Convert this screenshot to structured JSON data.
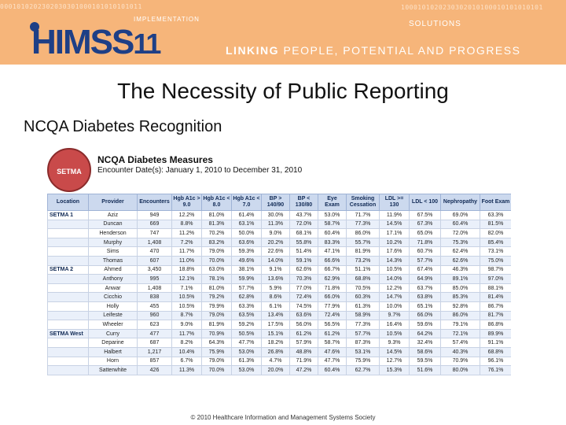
{
  "banner": {
    "binary_left": "0001010202302030301000101010101011",
    "binary_right": "1000101020230302010100010101010101",
    "implementation": "IMPLEMENTATION",
    "solutions": "SOLUTIONS",
    "logo_text": "HIMSS",
    "logo_number": "11",
    "tagline_strong": "LINKING",
    "tagline_rest": "PEOPLE, POTENTIAL AND PROGRESS"
  },
  "slide": {
    "title": "The Necessity of Public Reporting",
    "subtitle": "NCQA Diabetes Recognition"
  },
  "report": {
    "seal_text": "SETMA",
    "title": "NCQA Diabetes Measures",
    "date_range": "Encounter Date(s): January 1, 2010 to December 31, 2010"
  },
  "table": {
    "headers": [
      "Location",
      "Provider",
      "Encounters",
      "Hgb A1c > 9.0",
      "Hgb A1c < 8.0",
      "Hgb A1c < 7.0",
      "BP > 140/90",
      "BP < 130/80",
      "Eye Exam",
      "Smoking Cessation",
      "LDL >= 130",
      "LDL < 100",
      "Nephropathy",
      "Foot Exam"
    ],
    "rows": [
      [
        "SETMA 1",
        "Aziz",
        "949",
        "12.2%",
        "81.0%",
        "61.4%",
        "30.0%",
        "43.7%",
        "53.0%",
        "71.7%",
        "11.9%",
        "67.5%",
        "69.0%",
        "63.3%"
      ],
      [
        "",
        "Duncan",
        "669",
        "8.8%",
        "81.3%",
        "63.1%",
        "11.3%",
        "72.0%",
        "58.7%",
        "77.3%",
        "14.5%",
        "67.3%",
        "60.4%",
        "81.5%"
      ],
      [
        "",
        "Henderson",
        "747",
        "11.2%",
        "70.2%",
        "50.0%",
        "9.0%",
        "68.1%",
        "60.4%",
        "86.0%",
        "17.1%",
        "65.0%",
        "72.0%",
        "82.0%"
      ],
      [
        "",
        "Murphy",
        "1,408",
        "7.2%",
        "83.2%",
        "63.6%",
        "20.2%",
        "55.8%",
        "83.3%",
        "55.7%",
        "10.2%",
        "71.8%",
        "75.3%",
        "85.4%"
      ],
      [
        "",
        "Sims",
        "470",
        "11.7%",
        "79.0%",
        "59.3%",
        "22.6%",
        "51.4%",
        "47.1%",
        "81.9%",
        "17.6%",
        "60.7%",
        "62.4%",
        "73.1%"
      ],
      [
        "",
        "Thomas",
        "607",
        "11.0%",
        "70.0%",
        "49.6%",
        "14.0%",
        "59.1%",
        "66.6%",
        "73.2%",
        "14.3%",
        "57.7%",
        "62.6%",
        "75.0%"
      ],
      [
        "SETMA 2",
        "Ahmed",
        "3,450",
        "18.8%",
        "63.0%",
        "38.1%",
        "9.1%",
        "62.6%",
        "66.7%",
        "51.1%",
        "10.5%",
        "67.4%",
        "46.3%",
        "98.7%"
      ],
      [
        "",
        "Anthony",
        "995",
        "12.1%",
        "78.1%",
        "59.9%",
        "13.6%",
        "70.3%",
        "62.9%",
        "68.8%",
        "14.0%",
        "64.9%",
        "89.1%",
        "97.0%"
      ],
      [
        "",
        "Anwar",
        "1,408",
        "7.1%",
        "81.0%",
        "57.7%",
        "5.9%",
        "77.0%",
        "71.8%",
        "70.5%",
        "12.2%",
        "63.7%",
        "85.0%",
        "88.1%"
      ],
      [
        "",
        "Cicchio",
        "838",
        "10.5%",
        "79.2%",
        "62.8%",
        "8.6%",
        "72.4%",
        "66.0%",
        "60.3%",
        "14.7%",
        "63.8%",
        "85.3%",
        "81.4%"
      ],
      [
        "",
        "Holly",
        "455",
        "10.5%",
        "79.9%",
        "63.3%",
        "6.1%",
        "74.5%",
        "77.9%",
        "61.3%",
        "10.0%",
        "65.1%",
        "92.8%",
        "86.7%"
      ],
      [
        "",
        "Leifeste",
        "960",
        "8.7%",
        "79.0%",
        "63.5%",
        "13.4%",
        "63.6%",
        "72.4%",
        "58.9%",
        "9.7%",
        "66.0%",
        "86.0%",
        "81.7%"
      ],
      [
        "",
        "Wheeler",
        "623",
        "9.0%",
        "81.9%",
        "59.2%",
        "17.5%",
        "56.0%",
        "56.5%",
        "77.3%",
        "16.4%",
        "59.6%",
        "79.1%",
        "86.8%"
      ],
      [
        "SETMA West",
        "Curry",
        "477",
        "11.7%",
        "70.9%",
        "50.5%",
        "15.1%",
        "61.2%",
        "61.2%",
        "57.7%",
        "10.5%",
        "64.2%",
        "72.1%",
        "89.9%"
      ],
      [
        "",
        "Deparine",
        "687",
        "8.2%",
        "64.3%",
        "47.7%",
        "18.2%",
        "57.9%",
        "58.7%",
        "87.3%",
        "9.3%",
        "32.4%",
        "57.4%",
        "91.1%"
      ],
      [
        "",
        "Halbert",
        "1,217",
        "10.4%",
        "75.9%",
        "53.0%",
        "26.8%",
        "48.8%",
        "47.6%",
        "53.1%",
        "14.5%",
        "58.6%",
        "40.3%",
        "68.8%"
      ],
      [
        "",
        "Horn",
        "857",
        "6.7%",
        "79.0%",
        "61.3%",
        "4.7%",
        "71.9%",
        "47.7%",
        "75.9%",
        "12.7%",
        "59.5%",
        "70.9%",
        "96.1%"
      ],
      [
        "",
        "Satterwhite",
        "426",
        "11.3%",
        "70.0%",
        "53.0%",
        "20.0%",
        "47.2%",
        "60.4%",
        "62.7%",
        "15.3%",
        "51.6%",
        "80.0%",
        "76.1%"
      ]
    ]
  },
  "footer": "© 2010 Healthcare Information and Management Systems Society"
}
